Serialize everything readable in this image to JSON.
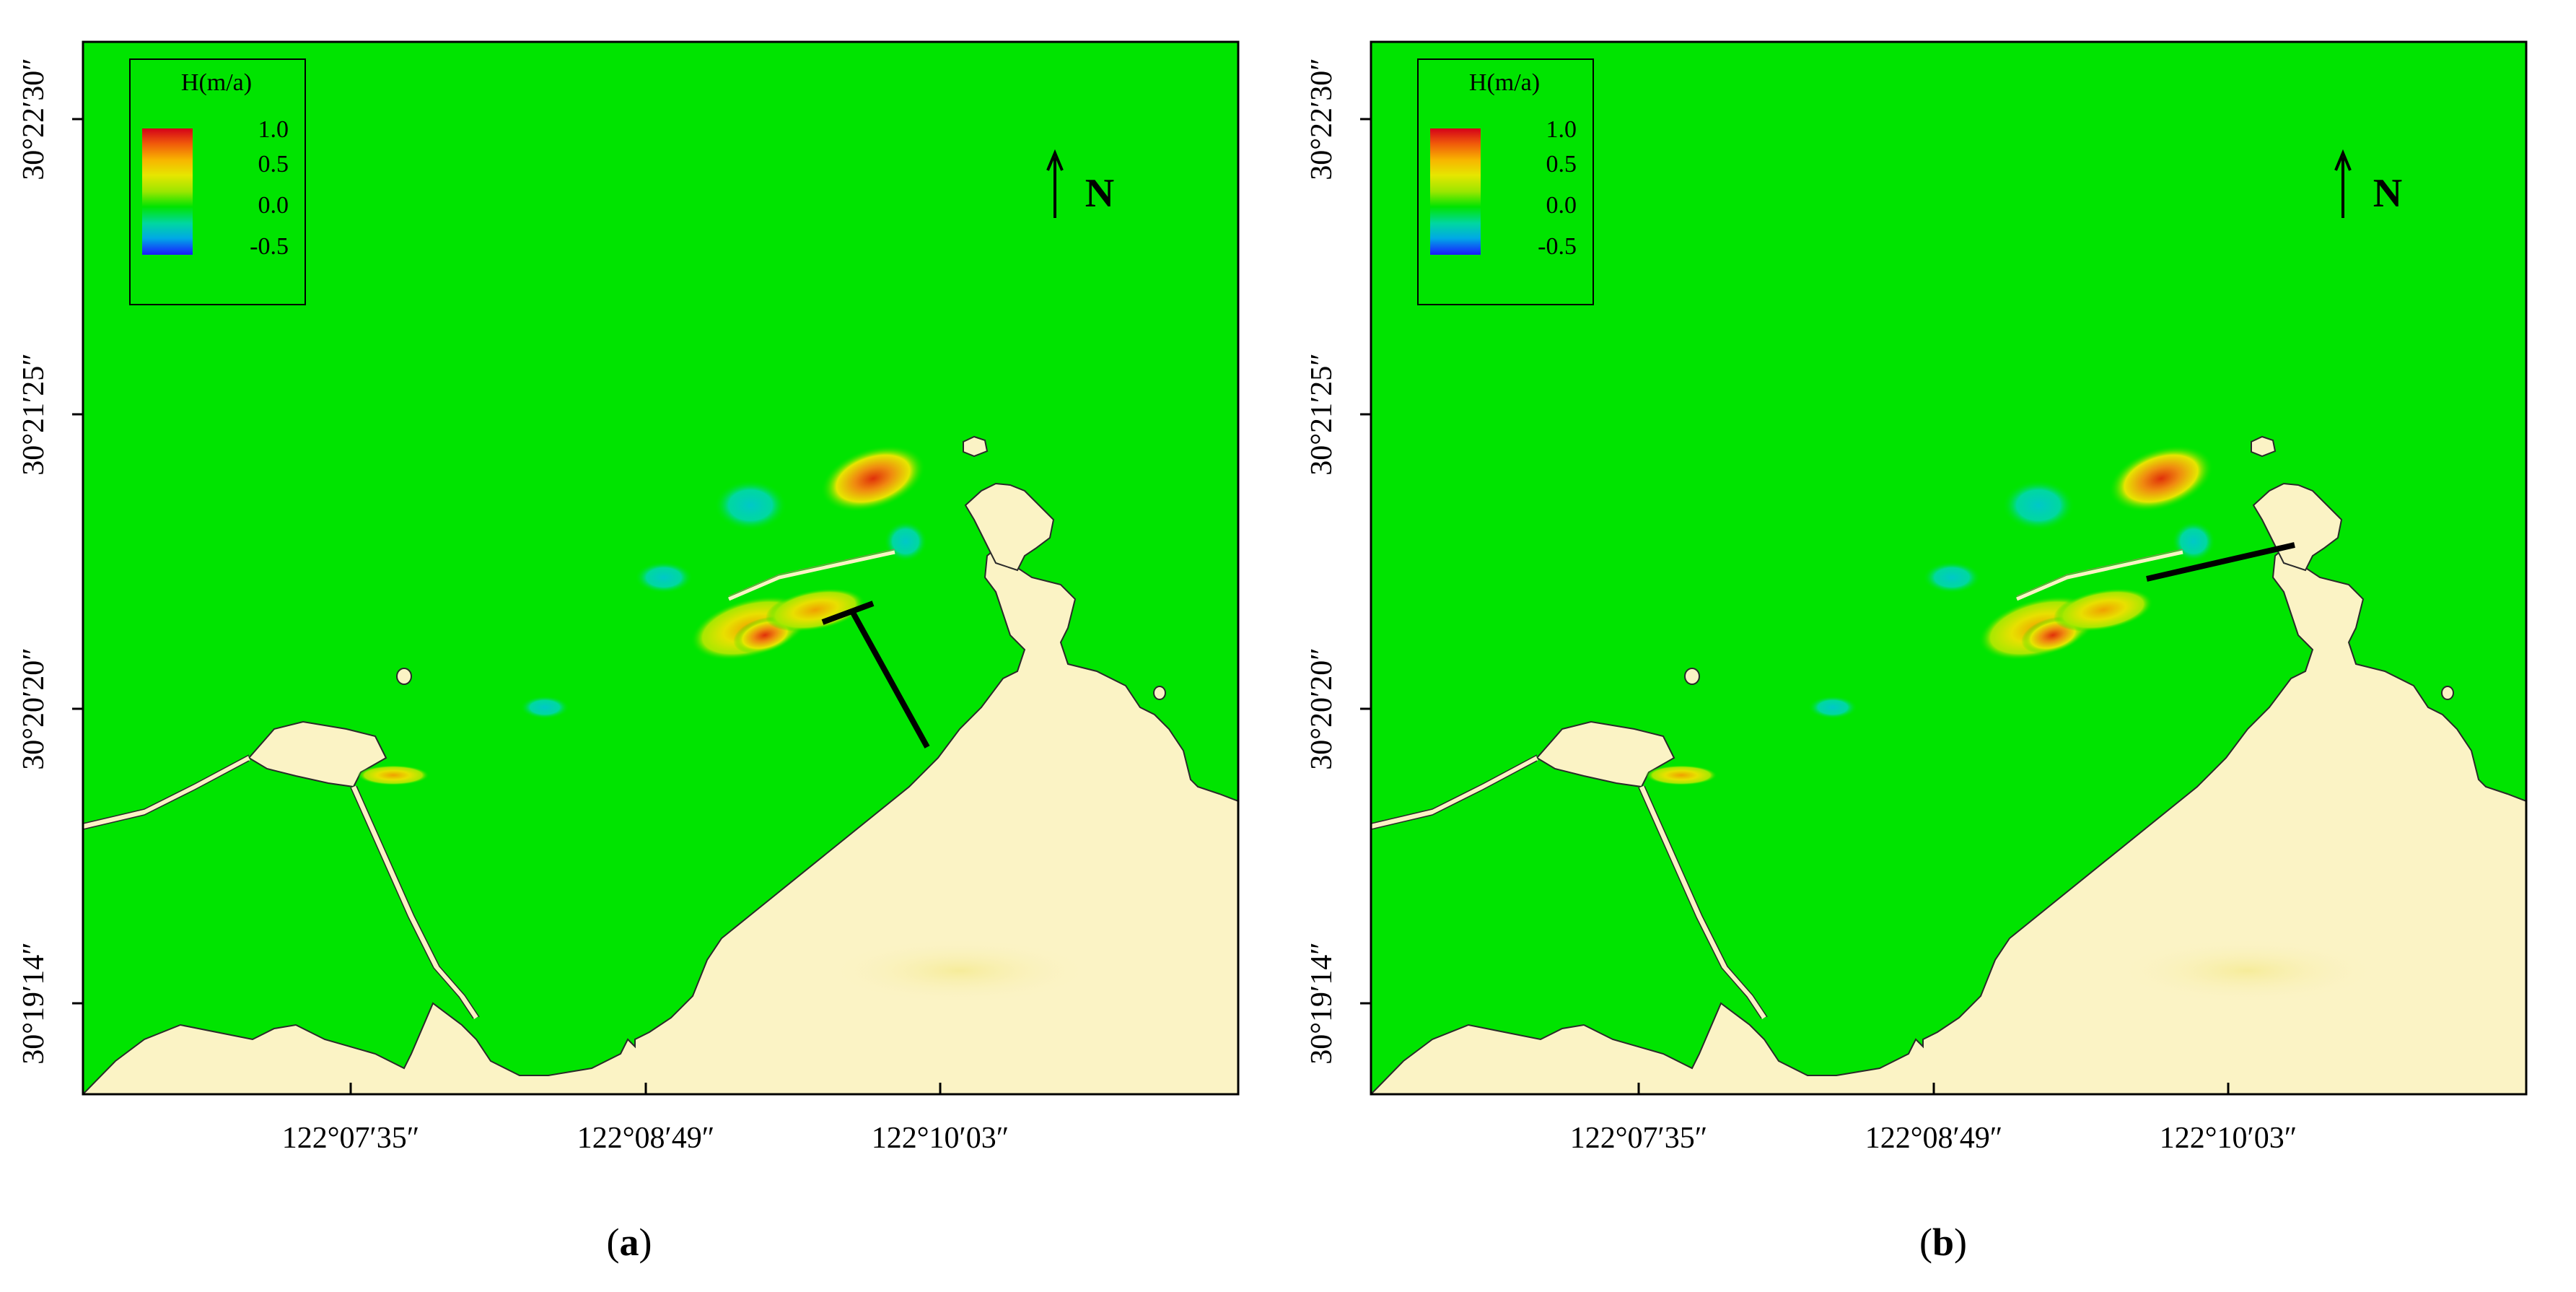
{
  "figure": {
    "panels": [
      {
        "id": "a",
        "label_open": "(",
        "label_letter": "a",
        "label_close": ")",
        "structure": "jetty-with-perpendicular-spur"
      },
      {
        "id": "b",
        "label_open": "(",
        "label_letter": "b",
        "label_close": ")",
        "structure": "straight-jetty-to-shore"
      }
    ],
    "legend": {
      "title": "H(m/a)",
      "ticks": [
        "1.0",
        "0.5",
        "0.0",
        "-0.5"
      ],
      "colorscale": [
        "#d4001a",
        "#f05a0a",
        "#f8b500",
        "#e6e600",
        "#9be600",
        "#00e400",
        "#00d7a0",
        "#00a8e6",
        "#0050ff",
        "#1a1aff"
      ]
    },
    "north_arrow": {
      "label": "N"
    },
    "axes": {
      "y_ticks": [
        "30°22′30″",
        "30°21′25″",
        "30°20′20″",
        "30°19′14″"
      ],
      "x_ticks": [
        "122°07′35″",
        "122°08′49″",
        "122°10′03″"
      ]
    },
    "colors": {
      "water": "#00e400",
      "land": "#fbf3c5",
      "coast_line": "#2a2a2a",
      "structure": "#000000"
    }
  }
}
